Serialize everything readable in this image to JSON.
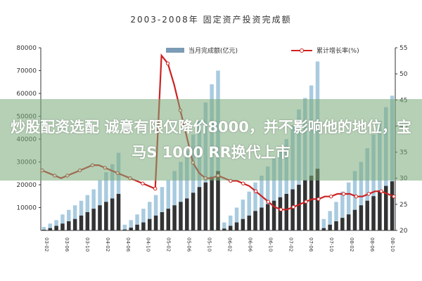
{
  "headline": "炒股配资选配 诚意有限仅降价8000，并不影响他的地位，宝马S 1000 RR换代上市",
  "colors": {
    "bar_dark": "#333333",
    "bar_mid": "#7c9cb6",
    "bar_light": "#a9cbe0",
    "line": "#cc2222",
    "marker": "#ffffff",
    "overlay": "#78aa78"
  },
  "chart_data": {
    "type": "bar",
    "title": "2003-2008年 固定资产投资完成额",
    "legend": {
      "placement": "top",
      "bars": "当月完成额(亿元)",
      "line": "累计增长率(%)"
    },
    "y_left": {
      "ticks": [
        "10000",
        "20000",
        "30000",
        "40000",
        "50000",
        "60000",
        "70000",
        "80000"
      ],
      "min": 0,
      "max": 80000
    },
    "y_right": {
      "ticks": [
        "20",
        "25",
        "30",
        "35",
        "40",
        "45",
        "50",
        "55"
      ],
      "min": 20,
      "max": 55
    },
    "x_ticks": [
      "03-02",
      "03-06",
      "03-10",
      "04-02",
      "04-06",
      "04-10",
      "05-02",
      "05-06",
      "05-10",
      "06-02",
      "06-06",
      "06-10",
      "07-02",
      "07-06",
      "07-10",
      "08-02",
      "08-06",
      "08-10"
    ],
    "bars": [
      {
        "dark": 300,
        "light": 1500
      },
      {
        "dark": 1000,
        "light": 3000
      },
      {
        "dark": 2000,
        "light": 4500
      },
      {
        "dark": 3000,
        "light": 7000
      },
      {
        "dark": 4000,
        "light": 9000
      },
      {
        "dark": 5000,
        "light": 11000
      },
      {
        "dark": 6500,
        "light": 13000
      },
      {
        "dark": 8000,
        "light": 15500
      },
      {
        "dark": 9500,
        "light": 18000
      },
      {
        "dark": 11000,
        "light": 22000
      },
      {
        "dark": 12500,
        "light": 25500
      },
      {
        "dark": 14000,
        "light": 29000
      },
      {
        "dark": 16000,
        "light": 34000
      },
      {
        "dark": 400,
        "light": 2500
      },
      {
        "dark": 1200,
        "light": 4500
      },
      {
        "dark": 2500,
        "light": 7000
      },
      {
        "dark": 3500,
        "light": 9500
      },
      {
        "dark": 5000,
        "light": 12500
      },
      {
        "dark": 6500,
        "light": 15500
      },
      {
        "dark": 8000,
        "light": 19000
      },
      {
        "dark": 9500,
        "light": 22000
      },
      {
        "dark": 11000,
        "light": 26000
      },
      {
        "dark": 12500,
        "light": 30000
      },
      {
        "dark": 14000,
        "light": 35000
      },
      {
        "dark": 16500,
        "light": 42000
      },
      {
        "dark": 19000,
        "light": 48000
      },
      {
        "dark": 21000,
        "light": 56000
      },
      {
        "dark": 23500,
        "light": 64000
      },
      {
        "dark": 26000,
        "light": 70000
      },
      {
        "dark": 800,
        "light": 3500
      },
      {
        "dark": 2000,
        "light": 6500
      },
      {
        "dark": 3500,
        "light": 10000
      },
      {
        "dark": 5000,
        "light": 13500
      },
      {
        "dark": 6500,
        "light": 17000
      },
      {
        "dark": 8500,
        "light": 21000
      },
      {
        "dark": 10000,
        "light": 24000
      },
      {
        "dark": 11500,
        "light": 28000
      },
      {
        "dark": 13000,
        "light": 31500
      },
      {
        "dark": 14500,
        "light": 35000
      },
      {
        "dark": 16000,
        "light": 40000
      },
      {
        "dark": 18000,
        "light": 46000
      },
      {
        "dark": 20000,
        "light": 53000
      },
      {
        "dark": 22000,
        "light": 58000
      },
      {
        "dark": 24000,
        "light": 63500
      },
      {
        "dark": 27000,
        "light": 74000
      },
      {
        "dark": 1000,
        "light": 5000
      },
      {
        "dark": 2500,
        "light": 8500
      },
      {
        "dark": 4000,
        "light": 12500
      },
      {
        "dark": 5500,
        "light": 17000
      },
      {
        "dark": 7000,
        "light": 21000
      },
      {
        "dark": 9000,
        "light": 26000
      },
      {
        "dark": 11000,
        "light": 30000
      },
      {
        "dark": 13000,
        "light": 36000
      },
      {
        "dark": 15000,
        "light": 42000
      },
      {
        "dark": 17500,
        "light": 48000
      },
      {
        "dark": 19500,
        "light": 54000
      },
      {
        "dark": 21500,
        "light": 59000
      }
    ],
    "line": [
      31.5,
      31,
      30.5,
      30,
      30.5,
      31,
      31.5,
      32,
      32.5,
      32.5,
      32,
      31.5,
      31,
      30.5,
      30,
      29.5,
      29,
      28.5,
      28,
      53.5,
      52,
      48,
      43,
      38,
      33,
      31,
      30,
      30,
      30.5,
      30,
      29.5,
      29.5,
      29,
      28.5,
      27.5,
      26.5,
      25.5,
      24.5,
      24,
      24,
      24.5,
      25,
      25.5,
      26,
      26,
      26.5,
      26.5,
      27,
      27,
      27,
      26.5,
      26.5,
      27,
      27.5,
      27.5,
      27,
      26.5
    ]
  }
}
